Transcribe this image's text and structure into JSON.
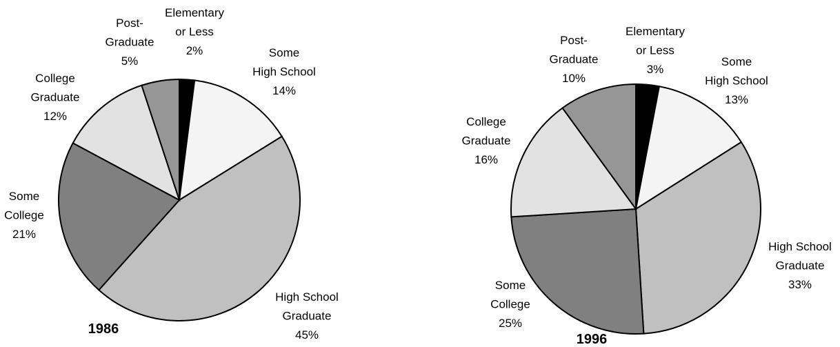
{
  "chart_data": [
    {
      "type": "pie",
      "title": "1986",
      "categories": [
        "Elementary\nor Less",
        "Some\nHigh School",
        "High School\nGraduate",
        "Some\nCollege",
        "College\nGraduate",
        "Post-\nGraduate"
      ],
      "values": [
        2,
        14,
        45,
        21,
        12,
        5
      ],
      "value_labels": [
        "2%",
        "14%",
        "45%",
        "21%",
        "12%",
        "5%"
      ],
      "colors": [
        "#000000",
        "#f4f4f4",
        "#c0c0c0",
        "#808080",
        "#e2e2e2",
        "#969696"
      ]
    },
    {
      "type": "pie",
      "title": "1996",
      "categories": [
        "Elementary\nor Less",
        "Some\nHigh School",
        "High School\nGraduate",
        "Some\nCollege",
        "College\nGraduate",
        "Post-\nGraduate"
      ],
      "values": [
        3,
        13,
        33,
        25,
        16,
        10
      ],
      "value_labels": [
        "3%",
        "13%",
        "33%",
        "25%",
        "16%",
        "10%"
      ],
      "colors": [
        "#000000",
        "#f4f4f4",
        "#c0c0c0",
        "#808080",
        "#e2e2e2",
        "#969696"
      ]
    }
  ]
}
